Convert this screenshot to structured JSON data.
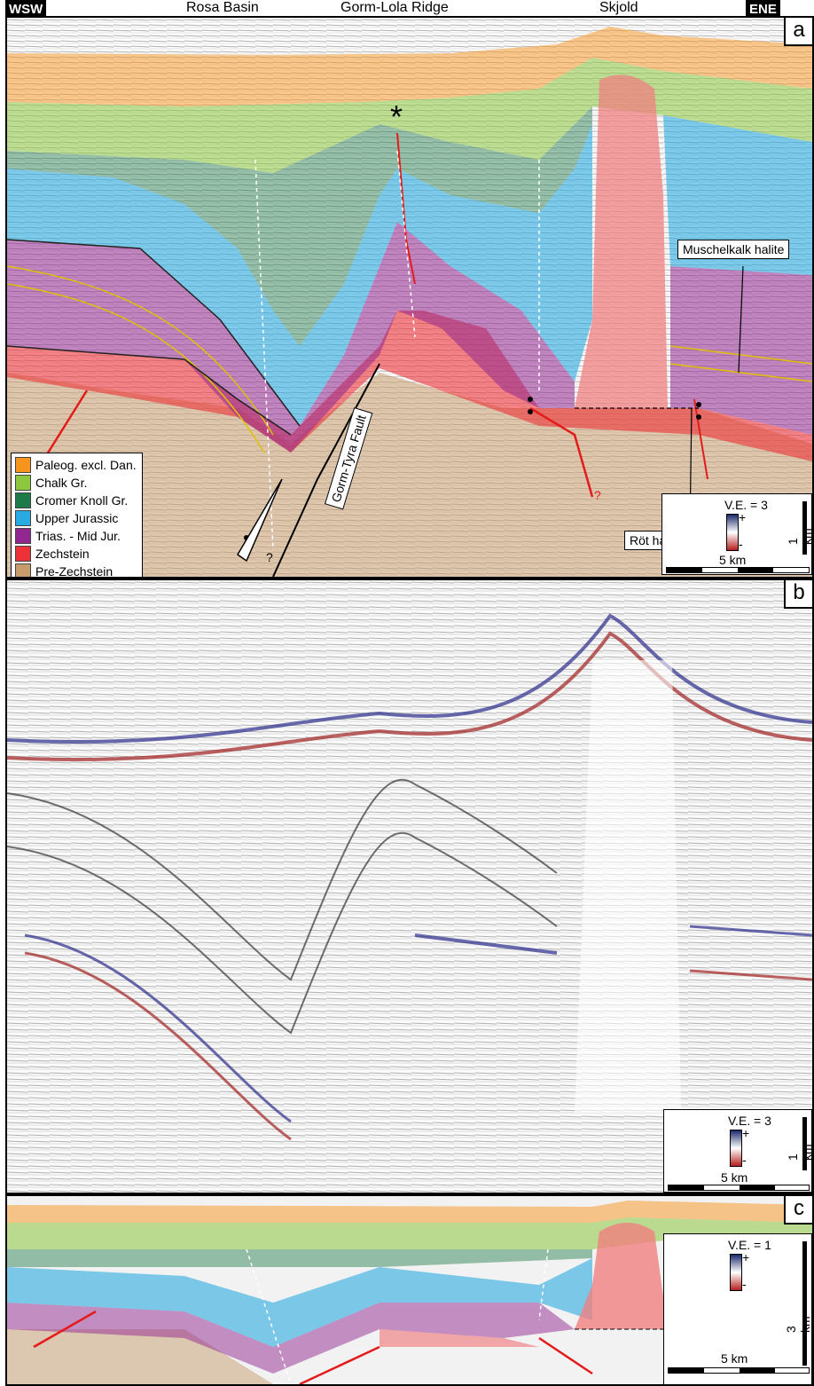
{
  "top_labels": {
    "west": "WSW",
    "east": "ENE",
    "rosa": "Rosa Basin",
    "gorm": "Gorm-Lola Ridge",
    "skjold": "Skjold"
  },
  "panel_letters": {
    "a": "a",
    "b": "b",
    "c": "c"
  },
  "legend": [
    {
      "label": "Paleog. excl. Dan.",
      "color": "#f7941d"
    },
    {
      "label": "Chalk Gr.",
      "color": "#8dc63f"
    },
    {
      "label": "Cromer Knoll Gr.",
      "color": "#1f7a4a"
    },
    {
      "label": "Upper Jurassic",
      "color": "#29aae1"
    },
    {
      "label": "Trias. - Mid Jur.",
      "color": "#92278f"
    },
    {
      "label": "Zechstein",
      "color": "#ed3237"
    },
    {
      "label": "Pre-Zechstein",
      "color": "#c69c6d"
    }
  ],
  "annotations": {
    "muschelkalk": "Muschelkalk halite",
    "rot": "Röt halite",
    "fault": "Gorm-Tyra Fault",
    "question": "?"
  },
  "scalebars": {
    "a": {
      "ve": "V.E. = 3",
      "horiz": "5 km",
      "vert": "1 km",
      "plus": "+",
      "minus": "-"
    },
    "b": {
      "ve": "V.E. = 3",
      "horiz": "5 km",
      "vert": "1 km",
      "plus": "+",
      "minus": "-"
    },
    "c": {
      "ve": "V.E. = 1",
      "horiz": "5 km",
      "vert": "3 km",
      "plus": "+",
      "minus": "-"
    }
  }
}
